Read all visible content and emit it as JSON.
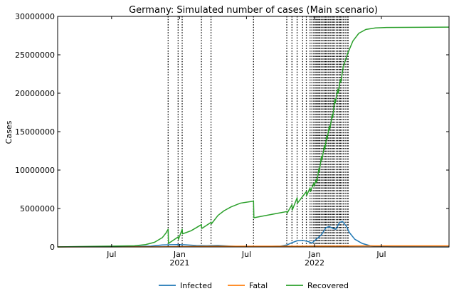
{
  "chart_data": {
    "type": "line",
    "title": "Germany: Simulated number of cases (Main scenario)",
    "xlabel": "",
    "ylabel": "Cases",
    "x_range": [
      "2020-02-06",
      "2022-12-31"
    ],
    "ylim": [
      0,
      30000000
    ],
    "y_ticks": [
      0,
      5000000,
      10000000,
      15000000,
      20000000,
      25000000,
      30000000
    ],
    "y_tick_labels": [
      "0",
      "5000000",
      "10000000",
      "15000000",
      "20000000",
      "25000000",
      "30000000"
    ],
    "x_ticks": [
      {
        "date": "2020-07-01",
        "label": "Jul",
        "sublabel": ""
      },
      {
        "date": "2021-01-01",
        "label": "Jan",
        "sublabel": "2021"
      },
      {
        "date": "2021-07-01",
        "label": "Jul",
        "sublabel": ""
      },
      {
        "date": "2022-01-01",
        "label": "Jan",
        "sublabel": "2022"
      },
      {
        "date": "2022-07-01",
        "label": "Jul",
        "sublabel": ""
      }
    ],
    "grid": false,
    "legend_position": "bottom-center",
    "vertical_lines": [
      "2020-12-01",
      "2020-12-28",
      "2021-01-08",
      "2021-03-01",
      "2021-03-27",
      "2021-07-20",
      "2021-10-18",
      "2021-11-01",
      "2021-11-15",
      "2021-11-30",
      "2021-12-10",
      "2021-12-20",
      "2021-12-25",
      "2021-12-30",
      "2022-01-03",
      "2022-01-06",
      "2022-01-10",
      "2022-01-13",
      "2022-01-16",
      "2022-01-20",
      "2022-01-24",
      "2022-01-28",
      "2022-01-31",
      "2022-02-03",
      "2022-02-07",
      "2022-02-10",
      "2022-02-14",
      "2022-02-18",
      "2022-02-21",
      "2022-02-25",
      "2022-03-01",
      "2022-03-05",
      "2022-03-09",
      "2022-03-12",
      "2022-03-16",
      "2022-03-20",
      "2022-03-25",
      "2022-03-30",
      "2022-04-02"
    ],
    "series": [
      {
        "name": "Infected",
        "color": "#1f77b4",
        "points": [
          [
            "2020-02-06",
            0
          ],
          [
            "2020-04-01",
            10000
          ],
          [
            "2020-07-01",
            15000
          ],
          [
            "2020-09-01",
            30000
          ],
          [
            "2020-10-15",
            100000
          ],
          [
            "2020-11-15",
            250000
          ],
          [
            "2020-12-01",
            280000
          ],
          [
            "2020-12-28",
            300000
          ],
          [
            "2021-01-15",
            280000
          ],
          [
            "2021-02-15",
            180000
          ],
          [
            "2021-03-15",
            160000
          ],
          [
            "2021-04-15",
            200000
          ],
          [
            "2021-05-15",
            120000
          ],
          [
            "2021-06-15",
            40000
          ],
          [
            "2021-07-20",
            30000
          ],
          [
            "2021-09-01",
            60000
          ],
          [
            "2021-10-01",
            100000
          ],
          [
            "2021-10-18",
            250000
          ],
          [
            "2021-11-01",
            550000
          ],
          [
            "2021-11-15",
            800000
          ],
          [
            "2021-11-30",
            850000
          ],
          [
            "2021-12-15",
            700000
          ],
          [
            "2021-12-25",
            500000
          ],
          [
            "2022-01-06",
            1000000
          ],
          [
            "2022-01-20",
            1600000
          ],
          [
            "2022-02-01",
            2500000
          ],
          [
            "2022-02-10",
            2650000
          ],
          [
            "2022-02-20",
            2400000
          ],
          [
            "2022-02-28",
            2300000
          ],
          [
            "2022-03-10",
            3200000
          ],
          [
            "2022-03-18",
            3300000
          ],
          [
            "2022-03-28",
            2700000
          ],
          [
            "2022-04-05",
            1900000
          ],
          [
            "2022-04-20",
            1000000
          ],
          [
            "2022-05-10",
            450000
          ],
          [
            "2022-06-01",
            150000
          ],
          [
            "2022-07-01",
            40000
          ],
          [
            "2022-08-01",
            10000
          ],
          [
            "2022-12-31",
            0
          ]
        ]
      },
      {
        "name": "Fatal",
        "color": "#ff7f0e",
        "points": [
          [
            "2020-02-06",
            0
          ],
          [
            "2020-06-01",
            9000
          ],
          [
            "2020-10-01",
            10000
          ],
          [
            "2020-11-01",
            15000
          ],
          [
            "2020-12-01",
            20000
          ],
          [
            "2021-01-01",
            35000
          ],
          [
            "2021-02-01",
            60000
          ],
          [
            "2021-04-01",
            80000
          ],
          [
            "2021-07-01",
            91000
          ],
          [
            "2021-10-01",
            95000
          ],
          [
            "2021-12-01",
            105000
          ],
          [
            "2022-02-01",
            118000
          ],
          [
            "2022-04-01",
            130000
          ],
          [
            "2022-06-01",
            140000
          ],
          [
            "2022-12-31",
            142000
          ]
        ]
      },
      {
        "name": "Recovered",
        "color": "#2ca02c",
        "points": [
          [
            "2020-02-06",
            0
          ],
          [
            "2020-04-01",
            50000
          ],
          [
            "2020-07-01",
            100000
          ],
          [
            "2020-09-01",
            150000
          ],
          [
            "2020-10-01",
            300000
          ],
          [
            "2020-10-25",
            600000
          ],
          [
            "2020-11-15",
            1200000
          ],
          [
            "2020-11-25",
            1800000
          ],
          [
            "2020-12-01",
            2300000
          ],
          [
            "2020-12-02",
            450000
          ],
          [
            "2020-12-28",
            1300000
          ],
          [
            "2020-12-29",
            1000000
          ],
          [
            "2021-01-08",
            2300000
          ],
          [
            "2021-01-09",
            1700000
          ],
          [
            "2021-02-01",
            2100000
          ],
          [
            "2021-03-01",
            2900000
          ],
          [
            "2021-03-02",
            2400000
          ],
          [
            "2021-03-27",
            3200000
          ],
          [
            "2021-03-28",
            3000000
          ],
          [
            "2021-04-15",
            4100000
          ],
          [
            "2021-05-01",
            4700000
          ],
          [
            "2021-05-20",
            5200000
          ],
          [
            "2021-06-15",
            5700000
          ],
          [
            "2021-07-19",
            5950000
          ],
          [
            "2021-07-20",
            6000000
          ],
          [
            "2021-07-21",
            3800000
          ],
          [
            "2021-10-18",
            4600000
          ],
          [
            "2021-10-19",
            4400000
          ],
          [
            "2021-11-01",
            5500000
          ],
          [
            "2021-11-02",
            4800000
          ],
          [
            "2021-11-15",
            6400000
          ],
          [
            "2021-11-16",
            5700000
          ],
          [
            "2021-12-10",
            7200000
          ],
          [
            "2021-12-11",
            6700000
          ],
          [
            "2021-12-20",
            7700000
          ],
          [
            "2021-12-21",
            7200000
          ],
          [
            "2021-12-30",
            8300000
          ],
          [
            "2021-12-31",
            7900000
          ],
          [
            "2022-01-06",
            8800000
          ],
          [
            "2022-01-07",
            8400000
          ],
          [
            "2022-01-13",
            10200000
          ],
          [
            "2022-01-14",
            9800000
          ],
          [
            "2022-01-20",
            11800000
          ],
          [
            "2022-01-21",
            11300000
          ],
          [
            "2022-01-28",
            13200000
          ],
          [
            "2022-01-29",
            12700000
          ],
          [
            "2022-02-03",
            14400000
          ],
          [
            "2022-02-04",
            14000000
          ],
          [
            "2022-02-10",
            15700000
          ],
          [
            "2022-02-11",
            15200000
          ],
          [
            "2022-02-18",
            17200000
          ],
          [
            "2022-02-19",
            16800000
          ],
          [
            "2022-02-25",
            19200000
          ],
          [
            "2022-02-26",
            18700000
          ],
          [
            "2022-03-05",
            20500000
          ],
          [
            "2022-03-06",
            20000000
          ],
          [
            "2022-03-12",
            21800000
          ],
          [
            "2022-03-13",
            21400000
          ],
          [
            "2022-03-20",
            23500000
          ],
          [
            "2022-04-01",
            25200000
          ],
          [
            "2022-04-15",
            26800000
          ],
          [
            "2022-05-01",
            27800000
          ],
          [
            "2022-05-20",
            28300000
          ],
          [
            "2022-06-15",
            28500000
          ],
          [
            "2022-07-15",
            28550000
          ],
          [
            "2022-12-31",
            28600000
          ]
        ]
      }
    ]
  }
}
